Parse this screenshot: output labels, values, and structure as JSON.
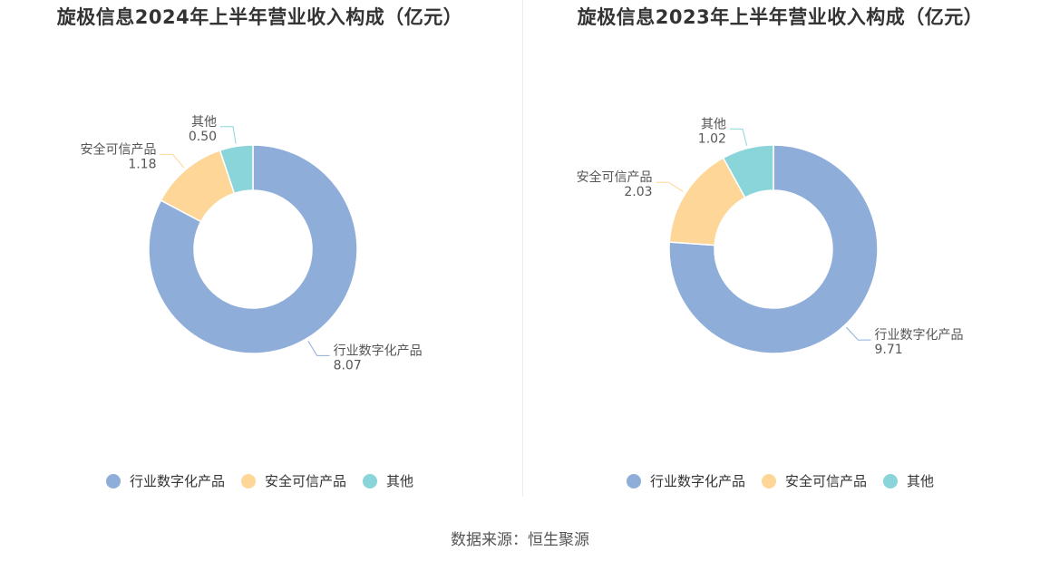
{
  "colors": [
    "#8fadd9",
    "#fdd698",
    "#89d5d9"
  ],
  "chart_data": [
    {
      "type": "pie",
      "title": "旋极信息2024年上半年营业收入构成（亿元）",
      "categories": [
        "行业数字化产品",
        "安全可信产品",
        "其他"
      ],
      "values": [
        8.07,
        1.18,
        0.5
      ],
      "value_labels": [
        "8.07",
        "1.18",
        "0.50"
      ],
      "legend": "bottom"
    },
    {
      "type": "pie",
      "title": "旋极信息2023年上半年营业收入构成（亿元）",
      "categories": [
        "行业数字化产品",
        "安全可信产品",
        "其他"
      ],
      "values": [
        9.71,
        2.03,
        1.02
      ],
      "value_labels": [
        "9.71",
        "2.03",
        "1.02"
      ],
      "legend": "bottom"
    }
  ],
  "source": "数据来源：恒生聚源"
}
